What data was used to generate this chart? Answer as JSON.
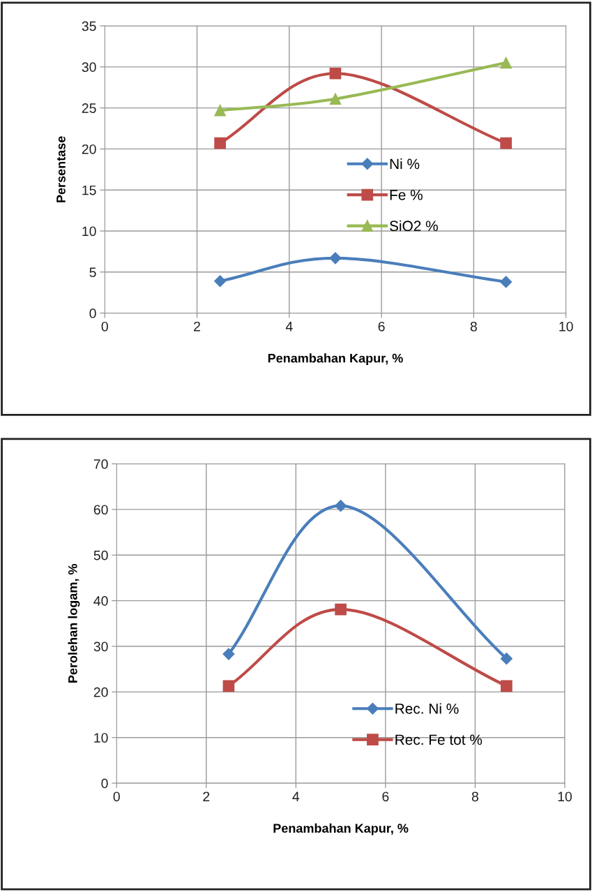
{
  "chart_data": [
    {
      "type": "line",
      "xlabel": "Penambahan Kapur, %",
      "ylabel": "Persentase",
      "xlim": [
        0,
        10
      ],
      "xticks": [
        0,
        2,
        4,
        6,
        8,
        10
      ],
      "ylim": [
        0,
        35
      ],
      "yticks": [
        0,
        5,
        10,
        15,
        20,
        25,
        30,
        35
      ],
      "grid": true,
      "legend": "right",
      "x": [
        2.5,
        5,
        8.7
      ],
      "series": [
        {
          "name": "Ni %",
          "color": "#4a7ebb",
          "marker": "diamond",
          "values": [
            3.9,
            6.7,
            3.8
          ]
        },
        {
          "name": "Fe %",
          "color": "#be4b48",
          "marker": "square",
          "values": [
            20.7,
            29.2,
            20.7
          ]
        },
        {
          "name": "SiO2 %",
          "color": "#98b954",
          "marker": "triangle",
          "values": [
            24.7,
            26.1,
            30.5
          ]
        }
      ]
    },
    {
      "type": "line",
      "xlabel": "Penambahan Kapur, %",
      "ylabel": "Perolehan logam, %",
      "xlim": [
        0,
        10
      ],
      "xticks": [
        0,
        2,
        4,
        6,
        8,
        10
      ],
      "ylim": [
        0,
        70
      ],
      "yticks": [
        0,
        10,
        20,
        30,
        40,
        50,
        60,
        70
      ],
      "grid": true,
      "legend": "lower right",
      "x": [
        2.5,
        5,
        8.7
      ],
      "series": [
        {
          "name": "Rec. Ni %",
          "color": "#4a7ebb",
          "marker": "diamond",
          "values": [
            28.3,
            60.8,
            27.3
          ]
        },
        {
          "name": "Rec. Fe tot %",
          "color": "#be4b48",
          "marker": "square",
          "values": [
            21.3,
            38.1,
            21.3
          ]
        }
      ]
    }
  ]
}
